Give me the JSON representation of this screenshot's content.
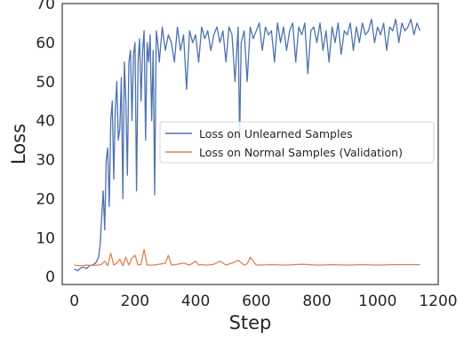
{
  "chart_data": {
    "type": "line",
    "title": "",
    "xlabel": "Step",
    "ylabel": "Loss",
    "xlim": [
      -40,
      1200
    ],
    "ylim": [
      -2,
      70
    ],
    "xticks": [
      0,
      200,
      400,
      600,
      800,
      1000,
      1200
    ],
    "yticks": [
      0,
      10,
      20,
      30,
      40,
      50,
      60,
      70
    ],
    "grid": false,
    "legend": "center-right",
    "series": [
      {
        "name": "Loss on Unlearned Samples",
        "color": "#4c72b0",
        "x": [
          0,
          10,
          20,
          30,
          40,
          50,
          60,
          70,
          80,
          85,
          90,
          95,
          100,
          105,
          110,
          115,
          120,
          125,
          130,
          135,
          140,
          145,
          150,
          155,
          160,
          165,
          170,
          175,
          180,
          185,
          190,
          195,
          200,
          205,
          210,
          215,
          220,
          225,
          230,
          235,
          240,
          245,
          250,
          255,
          260,
          265,
          270,
          275,
          280,
          290,
          300,
          310,
          320,
          330,
          340,
          350,
          360,
          370,
          380,
          390,
          400,
          410,
          420,
          430,
          440,
          450,
          460,
          470,
          480,
          490,
          500,
          510,
          520,
          530,
          540,
          545,
          550,
          560,
          570,
          580,
          590,
          600,
          610,
          620,
          630,
          640,
          650,
          660,
          670,
          680,
          690,
          700,
          710,
          720,
          730,
          740,
          750,
          760,
          770,
          780,
          790,
          800,
          810,
          820,
          830,
          840,
          850,
          860,
          870,
          880,
          890,
          900,
          910,
          920,
          930,
          940,
          950,
          960,
          970,
          980,
          990,
          1000,
          1010,
          1020,
          1030,
          1040,
          1050,
          1060,
          1070,
          1080,
          1090,
          1100,
          1110,
          1120,
          1130,
          1140
        ],
        "y": [
          2,
          1.5,
          2.2,
          2.5,
          2.1,
          2.8,
          3,
          3.5,
          5,
          8,
          15,
          22,
          12,
          30,
          33,
          18,
          40,
          45,
          25,
          43,
          50,
          35,
          38,
          51,
          20,
          55,
          45,
          26,
          55,
          58,
          40,
          57,
          60,
          22,
          55,
          61,
          45,
          58,
          63,
          35,
          60,
          55,
          62,
          40,
          58,
          21,
          63,
          60,
          55,
          64,
          58,
          62,
          60,
          55,
          64,
          58,
          62,
          48,
          63,
          60,
          62,
          55,
          64,
          61,
          63,
          58,
          62,
          64,
          60,
          63,
          55,
          64,
          62,
          50,
          64,
          35,
          60,
          63,
          50,
          64,
          61,
          63,
          65,
          58,
          64,
          62,
          63,
          55,
          65,
          60,
          64,
          58,
          63,
          65,
          55,
          64,
          62,
          65,
          52,
          63,
          64,
          60,
          65,
          58,
          63,
          55,
          64,
          60,
          65,
          57,
          63,
          62,
          65,
          58,
          64,
          60,
          65,
          62,
          63,
          66,
          60,
          64,
          62,
          65,
          58,
          64,
          63,
          66,
          60,
          65,
          63,
          64,
          66,
          62,
          65,
          63
        ]
      },
      {
        "name": "Loss on Normal Samples (Validation)",
        "color": "#dd8452",
        "x": [
          0,
          20,
          40,
          60,
          80,
          90,
          100,
          110,
          120,
          130,
          140,
          150,
          160,
          170,
          180,
          190,
          200,
          210,
          220,
          230,
          240,
          260,
          280,
          300,
          310,
          320,
          340,
          360,
          380,
          400,
          410,
          420,
          440,
          460,
          480,
          500,
          520,
          540,
          560,
          570,
          580,
          600,
          650,
          700,
          750,
          800,
          850,
          900,
          950,
          1000,
          1050,
          1100,
          1140
        ],
        "y": [
          3,
          2.8,
          3,
          2.9,
          3,
          3.2,
          4,
          2.8,
          6,
          3,
          3.5,
          4.5,
          2.8,
          5,
          3,
          4.8,
          5.5,
          3,
          3.2,
          7,
          3,
          3,
          3.2,
          3.5,
          5.5,
          3,
          3.2,
          3.5,
          3,
          4,
          3,
          3.1,
          3,
          3.2,
          4,
          3,
          3.5,
          4.2,
          3,
          3.3,
          5,
          3,
          3.1,
          3,
          3.2,
          3,
          3.1,
          3,
          3.1,
          3,
          3.1,
          3.1,
          3.1
        ]
      }
    ]
  }
}
